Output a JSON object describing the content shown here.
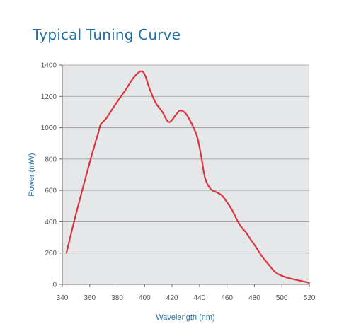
{
  "chart_data": {
    "type": "line",
    "title": "Typical Tuning Curve",
    "xlabel": "Wavelength (nm)",
    "ylabel": "Power (mW)",
    "xlim": [
      340,
      520
    ],
    "ylim": [
      0,
      1400
    ],
    "x_ticks": [
      340,
      360,
      380,
      400,
      420,
      440,
      460,
      480,
      500,
      520
    ],
    "y_ticks": [
      0,
      200,
      400,
      600,
      800,
      1000,
      1200,
      1400
    ],
    "grid": "horizontal",
    "series": [
      {
        "color": "#d9363e",
        "x": [
          343,
          350,
          360,
          366,
          368,
          372,
          378,
          386,
          392,
          397,
          400,
          404,
          408,
          413,
          416,
          418,
          420,
          423,
          426,
          430,
          434,
          438,
          441,
          444,
          448,
          452,
          456,
          460,
          464,
          468,
          471,
          474,
          477,
          481,
          485,
          490,
          495,
          500,
          505,
          510,
          515,
          520
        ],
        "y": [
          200,
          450,
          780,
          960,
          1020,
          1060,
          1140,
          1240,
          1320,
          1360,
          1340,
          1240,
          1160,
          1100,
          1050,
          1035,
          1050,
          1085,
          1110,
          1090,
          1030,
          950,
          830,
          680,
          610,
          590,
          570,
          525,
          470,
          400,
          360,
          330,
          290,
          240,
          185,
          130,
          80,
          55,
          40,
          30,
          20,
          10
        ]
      }
    ]
  }
}
